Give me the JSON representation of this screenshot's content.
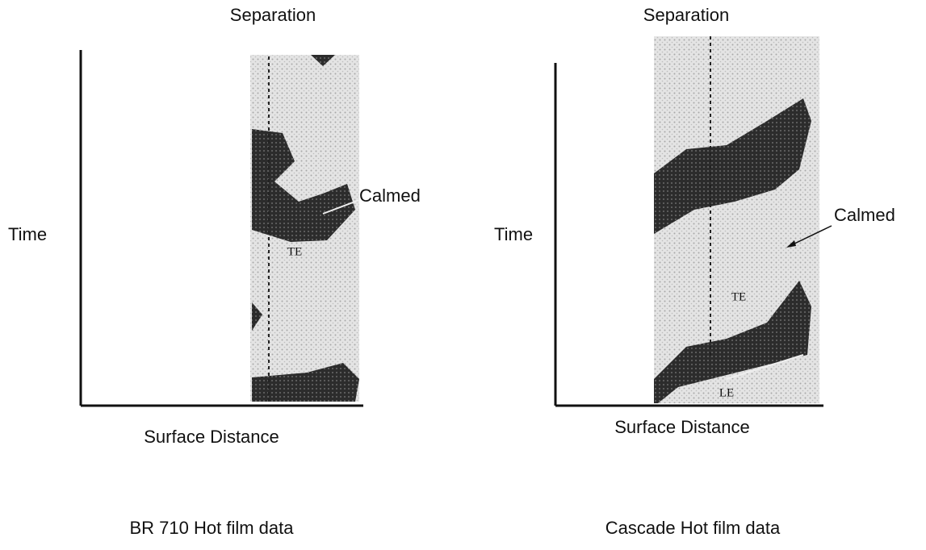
{
  "panels": [
    {
      "separation_label": "Separation",
      "y_label": "Time",
      "x_label": "Surface Distance",
      "caption": "BR 710 Hot film data",
      "annotations": {
        "calmed": "Calmed",
        "te": "TE"
      }
    },
    {
      "separation_label": "Separation",
      "y_label": "Time",
      "x_label": "Surface Distance",
      "caption": "Cascade Hot film data",
      "annotations": {
        "calmed": "Calmed",
        "te": "TE",
        "le": "LE"
      }
    }
  ]
}
